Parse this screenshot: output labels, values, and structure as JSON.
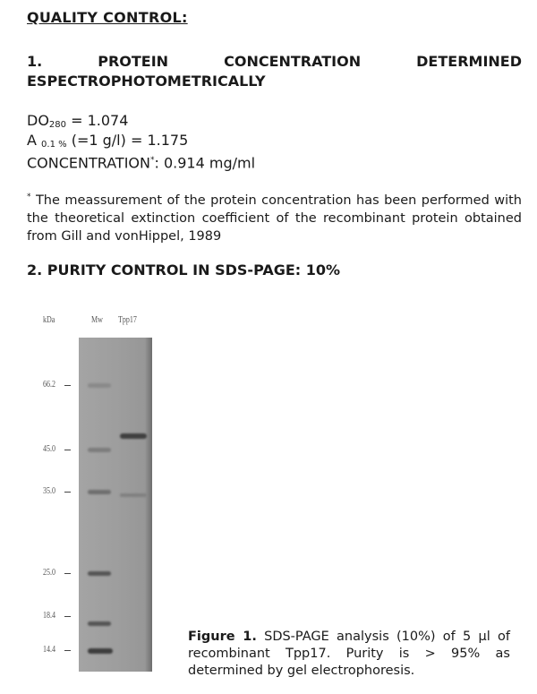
{
  "title": "QUALITY CONTROL:",
  "section1": {
    "number": "1.",
    "words": [
      "PROTEIN",
      "CONCENTRATION",
      "DETERMINED"
    ],
    "line2": "ESPECTROPHOTOMETRICALLY"
  },
  "measurements": {
    "do_label": "DO",
    "do_sub": "280",
    "do_value": " = 1.074",
    "a_label": "A ",
    "a_sub": "0.1 %",
    "a_value": " (=1 g/l) = 1.175",
    "conc_label": "CONCENTRATION",
    "conc_mark": "*",
    "conc_value": ": 0.914 mg/ml"
  },
  "footnote": {
    "mark": "*",
    "text": " The meassurement of the protein concentration has been performed with the theoretical extinction coefficient of the recombinant protein obtained from Gill and vonHippel, 1989"
  },
  "section2": "2. PURITY CONTROL IN SDS-PAGE: 10%",
  "gel": {
    "unit_label": "kDa",
    "lanes": [
      "Mw",
      "Tpp17"
    ],
    "markers": [
      "66.2",
      "45.0",
      "35.0",
      "25.0",
      "18.4",
      "14.4"
    ]
  },
  "caption": {
    "bold": "Figure 1.",
    "text": " SDS-PAGE analysis (10%) of 5 µl of recombinant Tpp17. Purity is > 95% as determined by gel electrophoresis."
  }
}
